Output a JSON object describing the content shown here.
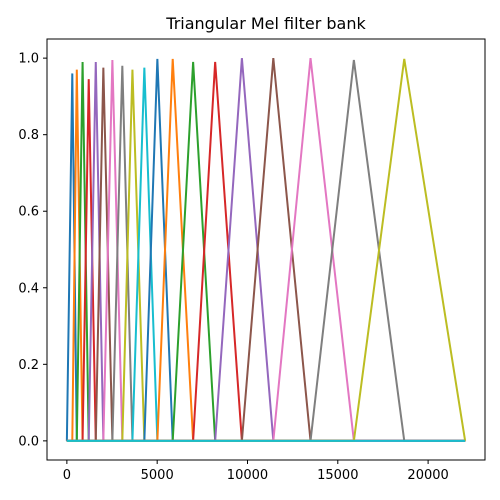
{
  "chart_data": {
    "type": "line",
    "title": "Triangular Mel filter bank",
    "xlabel": "",
    "ylabel": "",
    "xlim": [
      -1100,
      23150
    ],
    "ylim": [
      -0.05,
      1.05
    ],
    "grid": false,
    "x_ticks": [
      {
        "value": 0,
        "label": "0"
      },
      {
        "value": 5000,
        "label": "5000"
      },
      {
        "value": 10000,
        "label": "10000"
      },
      {
        "value": 15000,
        "label": "15000"
      },
      {
        "value": 20000,
        "label": "20000"
      }
    ],
    "y_ticks": [
      {
        "value": 0.0,
        "label": "0.0"
      },
      {
        "value": 0.2,
        "label": "0.2"
      },
      {
        "value": 0.4,
        "label": "0.4"
      },
      {
        "value": 0.6,
        "label": "0.6"
      },
      {
        "value": 0.8,
        "label": "0.8"
      },
      {
        "value": 1.0,
        "label": "1.0"
      }
    ],
    "x_range": [
      0,
      22050
    ],
    "filters": [
      {
        "left": 0,
        "center": 300,
        "right": 550,
        "peak": 0.96,
        "color": "#1f77b4"
      },
      {
        "left": 300,
        "center": 550,
        "right": 870,
        "peak": 0.97,
        "color": "#ff7f0e"
      },
      {
        "left": 550,
        "center": 870,
        "right": 1210,
        "peak": 0.99,
        "color": "#2ca02c"
      },
      {
        "left": 870,
        "center": 1210,
        "right": 1600,
        "peak": 0.945,
        "color": "#d62728"
      },
      {
        "left": 1210,
        "center": 1600,
        "right": 2020,
        "peak": 0.99,
        "color": "#9467bd"
      },
      {
        "left": 1600,
        "center": 2020,
        "right": 2520,
        "peak": 0.975,
        "color": "#8c564b"
      },
      {
        "left": 2020,
        "center": 2520,
        "right": 3070,
        "peak": 0.995,
        "color": "#e377c2"
      },
      {
        "left": 2520,
        "center": 3070,
        "right": 3630,
        "peak": 0.98,
        "color": "#7f7f7f"
      },
      {
        "left": 3070,
        "center": 3630,
        "right": 4290,
        "peak": 0.97,
        "color": "#bcbd22"
      },
      {
        "left": 3630,
        "center": 4290,
        "right": 5010,
        "peak": 0.975,
        "color": "#17becf"
      },
      {
        "left": 4290,
        "center": 5010,
        "right": 5860,
        "peak": 0.998,
        "color": "#1f77b4"
      },
      {
        "left": 5010,
        "center": 5860,
        "right": 6990,
        "peak": 0.998,
        "color": "#ff7f0e"
      },
      {
        "left": 5860,
        "center": 6990,
        "right": 8210,
        "peak": 0.99,
        "color": "#2ca02c"
      },
      {
        "left": 6990,
        "center": 8210,
        "right": 9690,
        "peak": 0.99,
        "color": "#d62728"
      },
      {
        "left": 8210,
        "center": 9690,
        "right": 11430,
        "peak": 1.0,
        "color": "#9467bd"
      },
      {
        "left": 9690,
        "center": 11430,
        "right": 13490,
        "peak": 1.0,
        "color": "#8c564b"
      },
      {
        "left": 11430,
        "center": 13490,
        "right": 15890,
        "peak": 1.0,
        "color": "#e377c2"
      },
      {
        "left": 13490,
        "center": 15890,
        "right": 18680,
        "peak": 0.995,
        "color": "#7f7f7f"
      },
      {
        "left": 15890,
        "center": 18680,
        "right": 22050,
        "peak": 0.998,
        "color": "#bcbd22"
      },
      {
        "left": 18680,
        "center": 22050,
        "right": 22050,
        "peak": 0.0,
        "color": "#17becf"
      }
    ]
  }
}
